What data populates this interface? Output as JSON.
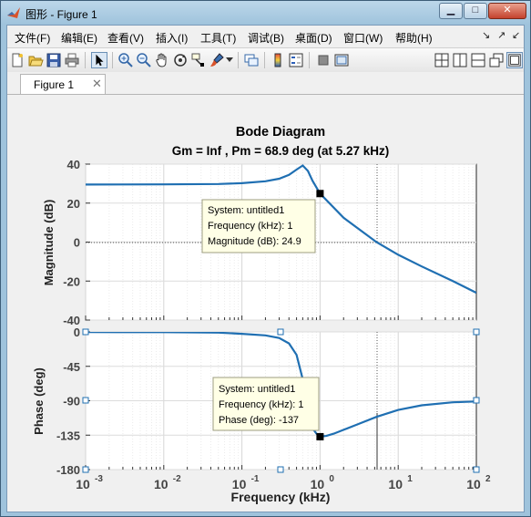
{
  "window": {
    "title": "图形 - Figure 1",
    "minimize_label": "▁",
    "maximize_label": "□",
    "close_label": "✕"
  },
  "menu": {
    "items": [
      "文件(F)",
      "编辑(E)",
      "查看(V)",
      "插入(I)",
      "工具(T)",
      "调试(B)",
      "桌面(D)",
      "窗口(W)",
      "帮助(H)"
    ],
    "right_icons": [
      "↘",
      "↗",
      "↙"
    ]
  },
  "toolbar": {
    "icons": [
      "new-figure-icon",
      "open-icon",
      "save-icon",
      "print-icon",
      "pointer-icon",
      "zoom-in-icon",
      "zoom-out-icon",
      "pan-hand-icon",
      "rotate-3d-icon",
      "data-cursor-icon",
      "brush-icon",
      "link-plot-icon",
      "colorbar-icon",
      "legend-icon",
      "hide-plot-tools-icon",
      "show-plot-tools-icon",
      "tile-grid-icon",
      "tile-horizontal-icon",
      "tile-vertical-icon",
      "float-icon",
      "dock-icon"
    ]
  },
  "tab": {
    "label": "Figure 1",
    "close_label": "✕"
  },
  "plot": {
    "title_line1": "Bode Diagram",
    "title_line2": "Gm = Inf ,  Pm = 68.9 deg (at 5.27 kHz)",
    "xlabel": "Frequency  (kHz)",
    "mag_ylabel": "Magnitude (dB)",
    "phase_ylabel": "Phase (deg)",
    "line_color": "#1f6fb2",
    "mag_tooltip": [
      "System: untitled1",
      "Frequency (kHz): 1",
      "Magnitude (dB): 24.9"
    ],
    "phase_tooltip": [
      "System: untitled1",
      "Frequency (kHz): 1",
      "Phase (deg): -137"
    ]
  },
  "chart_data": [
    {
      "type": "line",
      "title": "Bode Diagram",
      "ylabel": "Magnitude (dB)",
      "xscale": "log",
      "xlim": [
        0.001,
        100
      ],
      "ylim": [
        -40,
        40
      ],
      "yticks": [
        -40,
        -20,
        0,
        20,
        40
      ],
      "grid": true,
      "series": [
        {
          "name": "untitled1",
          "x": [
            0.001,
            0.01,
            0.05,
            0.1,
            0.2,
            0.3,
            0.4,
            0.5,
            0.6,
            0.7,
            0.8,
            1,
            2,
            5.27,
            10,
            20,
            50,
            100
          ],
          "y": [
            29.5,
            29.6,
            29.8,
            30.2,
            31.2,
            32.5,
            34.5,
            37.2,
            39.3,
            36.5,
            31.5,
            24.9,
            12.5,
            0,
            -6.5,
            -12.5,
            -20,
            -26
          ]
        }
      ],
      "annotations": [
        "System: untitled1",
        "Frequency (kHz): 1",
        "Magnitude (dB): 24.9"
      ],
      "markers": [
        {
          "x": 1,
          "y": 24.9
        }
      ]
    },
    {
      "type": "line",
      "ylabel": "Phase (deg)",
      "xlabel": "Frequency  (kHz)",
      "xscale": "log",
      "xlim": [
        0.001,
        100
      ],
      "ylim": [
        -180,
        0
      ],
      "xticks": [
        "10^-3",
        "10^-2",
        "10^-1",
        "10^0",
        "10^1",
        "10^2"
      ],
      "yticks": [
        -180,
        -135,
        -90,
        -45,
        0
      ],
      "grid": true,
      "series": [
        {
          "name": "untitled1",
          "x": [
            0.001,
            0.01,
            0.05,
            0.1,
            0.2,
            0.3,
            0.4,
            0.5,
            0.6,
            0.7,
            0.8,
            0.9,
            1,
            1.2,
            1.5,
            2,
            3,
            5.27,
            10,
            20,
            50,
            100
          ],
          "y": [
            -0.2,
            -0.4,
            -1,
            -2.5,
            -4.5,
            -8,
            -15,
            -30,
            -62,
            -105,
            -126,
            -133,
            -137,
            -136,
            -133,
            -128,
            -121,
            -111.1,
            -102,
            -96,
            -92,
            -91
          ]
        }
      ],
      "annotations": [
        "System: untitled1",
        "Frequency (kHz): 1",
        "Phase (deg): -137"
      ],
      "markers": [
        {
          "x": 1,
          "y": -137
        }
      ]
    }
  ]
}
